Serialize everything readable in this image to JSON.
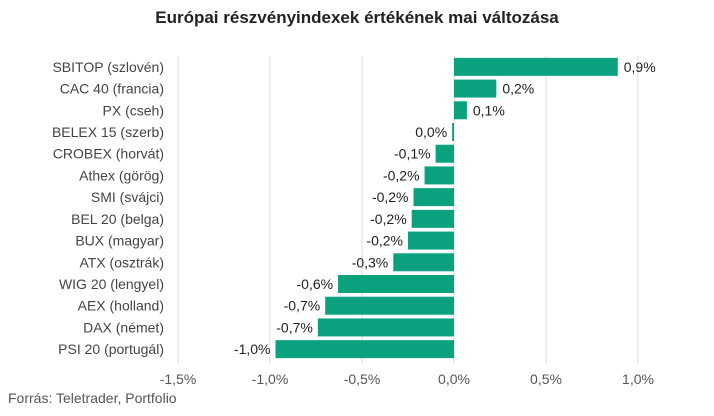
{
  "chart_data": {
    "type": "bar",
    "orientation": "horizontal",
    "title": "Európai részvényindexek értékének mai változása",
    "categories": [
      "SBITOP (szlovén)",
      "CAC 40 (francia)",
      "PX (cseh)",
      "BELEX 15 (szerb)",
      "CROBEX (horvát)",
      "Athex (görög)",
      "SMI (svájci)",
      "BEL 20 (belga)",
      "BUX (magyar)",
      "ATX (osztrák)",
      "WIG 20 (lengyel)",
      "AEX (holland)",
      "DAX (német)",
      "PSI 20 (portugál)"
    ],
    "values": [
      0.89,
      0.23,
      0.07,
      -0.01,
      -0.1,
      -0.16,
      -0.22,
      -0.23,
      -0.25,
      -0.33,
      -0.63,
      -0.7,
      -0.74,
      -0.97
    ],
    "value_labels": [
      "0,9%",
      "0,2%",
      "0,1%",
      "0,0%",
      "-0,1%",
      "-0,2%",
      "-0,2%",
      "-0,2%",
      "-0,2%",
      "-0,3%",
      "-0,6%",
      "-0,7%",
      "-0,7%",
      "-1,0%"
    ],
    "xlim": [
      -1.5,
      1.0
    ],
    "xticks": [
      -1.5,
      -1.0,
      -0.5,
      0.0,
      0.5,
      1.0
    ],
    "xtick_labels": [
      "-1,5%",
      "-1,0%",
      "-0,5%",
      "0,0%",
      "0,5%",
      "1,0%"
    ],
    "grid": true,
    "legend": "none",
    "bar_color": "#0aa17e"
  },
  "source": "Forrás: Teletrader, Portfolio"
}
